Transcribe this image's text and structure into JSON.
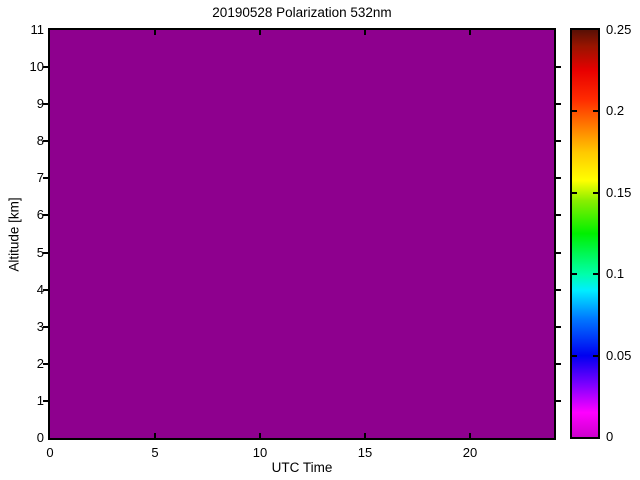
{
  "chart_data": {
    "type": "heatmap",
    "title": "20190528 Polarization 532nm",
    "xlabel": "UTC Time",
    "ylabel": "Altitude [km]",
    "xlim": [
      0,
      24
    ],
    "ylim": [
      0,
      11
    ],
    "xticks": [
      0,
      5,
      10,
      15,
      20
    ],
    "xtick_labels": [
      "0",
      "5",
      "10",
      "15",
      "20"
    ],
    "yticks": [
      0,
      1,
      2,
      3,
      4,
      5,
      6,
      7,
      8,
      9,
      10,
      11
    ],
    "ytick_labels": [
      "0",
      "1",
      "2",
      "3",
      "4",
      "5",
      "6",
      "7",
      "8",
      "9",
      "10",
      "11"
    ],
    "grid": false,
    "legend": "none",
    "uniform_value": 0,
    "fill_color": "#8E008E",
    "axis_color": "#000000",
    "background_color": "#ffffff",
    "colorbar": {
      "min": 0,
      "max": 0.25,
      "ticks": [
        0,
        0.05,
        0.1,
        0.15,
        0.2,
        0.25
      ],
      "tick_labels": [
        "0",
        "0.05",
        "0.1",
        "0.15",
        "0.2",
        "0.25"
      ],
      "position": "right",
      "gradient_stops": [
        {
          "pos": 0.0,
          "color": "#CC00CC"
        },
        {
          "pos": 0.06,
          "color": "#FF00FF"
        },
        {
          "pos": 0.13,
          "color": "#7A00FF"
        },
        {
          "pos": 0.2,
          "color": "#0000F0"
        },
        {
          "pos": 0.29,
          "color": "#0077FF"
        },
        {
          "pos": 0.36,
          "color": "#00EEFF"
        },
        {
          "pos": 0.4,
          "color": "#00FFAA"
        },
        {
          "pos": 0.5,
          "color": "#00F000"
        },
        {
          "pos": 0.58,
          "color": "#88EE00"
        },
        {
          "pos": 0.63,
          "color": "#FFFF00"
        },
        {
          "pos": 0.7,
          "color": "#FFC800"
        },
        {
          "pos": 0.76,
          "color": "#FF8000"
        },
        {
          "pos": 0.83,
          "color": "#FF2A00"
        },
        {
          "pos": 0.9,
          "color": "#E80000"
        },
        {
          "pos": 0.96,
          "color": "#991400"
        },
        {
          "pos": 1.0,
          "color": "#581005"
        }
      ]
    }
  }
}
